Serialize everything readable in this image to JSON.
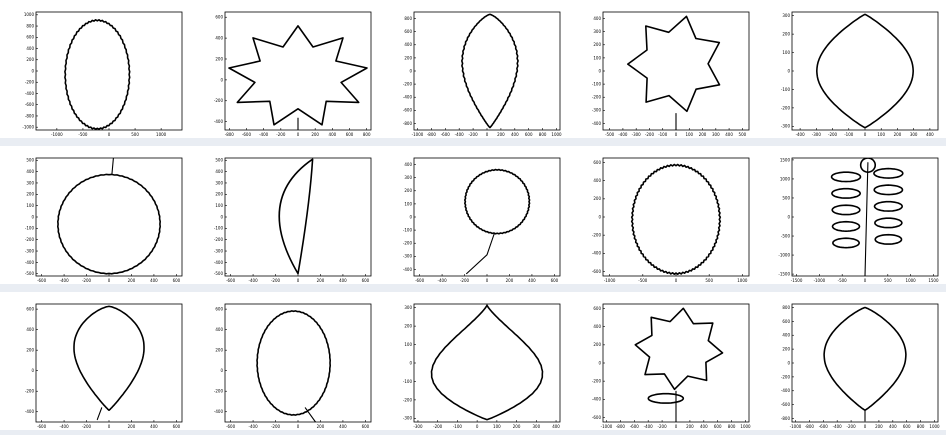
{
  "chart_data": [
    {
      "type": "line",
      "shape": "ellipse-toothed",
      "xticks": [
        "-1000",
        "-500",
        "0",
        "500",
        "1000"
      ],
      "yticks": [
        "1000",
        "800",
        "600",
        "400",
        "200",
        "0",
        "-200",
        "-400",
        "-600",
        "-800",
        "-1000"
      ],
      "xlim": [
        -1400,
        1400
      ],
      "ylim": [
        -1050,
        1050
      ],
      "grid": false,
      "legend": "none"
    },
    {
      "type": "line",
      "shape": "maple",
      "xticks": [
        "-800",
        "-600",
        "-400",
        "-200",
        "0",
        "200",
        "400",
        "600",
        "800"
      ],
      "yticks": [
        "600",
        "400",
        "200",
        "0",
        "-200",
        "-400"
      ],
      "xlim": [
        -850,
        850
      ],
      "ylim": [
        -480,
        650
      ],
      "grid": false,
      "legend": "none"
    },
    {
      "type": "line",
      "shape": "ovate-toothed",
      "xticks": [
        "-1000",
        "-800",
        "-600",
        "-400",
        "-200",
        "0",
        "200",
        "400",
        "600",
        "800",
        "1000"
      ],
      "yticks": [
        "800",
        "600",
        "400",
        "200",
        "0",
        "-200",
        "-400",
        "-600",
        "-800"
      ],
      "xlim": [
        -1050,
        1050
      ],
      "ylim": [
        -900,
        900
      ],
      "grid": false,
      "legend": "none"
    },
    {
      "type": "line",
      "shape": "oak",
      "xticks": [
        "-500",
        "-400",
        "-300",
        "-200",
        "-100",
        "0",
        "100",
        "200",
        "300",
        "400",
        "500"
      ],
      "yticks": [
        "400",
        "300",
        "200",
        "100",
        "0",
        "-100",
        "-200",
        "-300",
        "-400"
      ],
      "xlim": [
        -550,
        550
      ],
      "ylim": [
        -450,
        450
      ],
      "grid": false,
      "legend": "none"
    },
    {
      "type": "line",
      "shape": "rhombic",
      "xticks": [
        "-400",
        "-300",
        "-200",
        "-100",
        "0",
        "100",
        "200",
        "300",
        "400"
      ],
      "yticks": [
        "300",
        "200",
        "100",
        "0",
        "-100",
        "-200",
        "-300"
      ],
      "xlim": [
        -450,
        450
      ],
      "ylim": [
        -320,
        320
      ],
      "grid": false,
      "legend": "none"
    },
    {
      "type": "line",
      "shape": "round",
      "xticks": [
        "-600",
        "-400",
        "-200",
        "0",
        "200",
        "400",
        "600"
      ],
      "yticks": [
        "500",
        "400",
        "300",
        "200",
        "100",
        "0",
        "-100",
        "-200",
        "-300",
        "-400",
        "-500"
      ],
      "xlim": [
        -650,
        650
      ],
      "ylim": [
        -520,
        520
      ],
      "grid": false,
      "legend": "none"
    },
    {
      "type": "line",
      "shape": "narrow-curved",
      "xticks": [
        "-600",
        "-400",
        "-200",
        "0",
        "200",
        "400",
        "600"
      ],
      "yticks": [
        "500",
        "400",
        "300",
        "200",
        "100",
        "0",
        "-100",
        "-200",
        "-300",
        "-400",
        "-500"
      ],
      "xlim": [
        -650,
        650
      ],
      "ylim": [
        -520,
        520
      ],
      "grid": false,
      "legend": "none"
    },
    {
      "type": "line",
      "shape": "aspen",
      "xticks": [
        "-600",
        "-400",
        "-200",
        "0",
        "200",
        "400",
        "600"
      ],
      "yticks": [
        "400",
        "300",
        "200",
        "100",
        "0",
        "-100",
        "-200",
        "-300",
        "-400"
      ],
      "xlim": [
        -650,
        650
      ],
      "ylim": [
        -450,
        450
      ],
      "grid": false,
      "legend": "none"
    },
    {
      "type": "line",
      "shape": "obovate-serrated",
      "xticks": [
        "-1000",
        "-500",
        "0",
        "500",
        "1000"
      ],
      "yticks": [
        "600",
        "400",
        "200",
        "0",
        "-200",
        "-400",
        "-600"
      ],
      "xlim": [
        -1100,
        1100
      ],
      "ylim": [
        -650,
        650
      ],
      "grid": false,
      "legend": "none"
    },
    {
      "type": "line",
      "shape": "compound-rowan",
      "xticks": [
        "-1500",
        "-1000",
        "-500",
        "0",
        "500",
        "1000",
        "1500"
      ],
      "yticks": [
        "1500",
        "1000",
        "500",
        "0",
        "-500",
        "-1000",
        "-1500"
      ],
      "xlim": [
        -1600,
        1600
      ],
      "ylim": [
        -1550,
        1550
      ],
      "grid": false,
      "legend": "none"
    },
    {
      "type": "line",
      "shape": "ovate-stem",
      "xticks": [
        "-600",
        "-400",
        "-200",
        "0",
        "200",
        "400",
        "600"
      ],
      "yticks": [
        "600",
        "400",
        "200",
        "0",
        "-200",
        "-400"
      ],
      "xlim": [
        -650,
        650
      ],
      "ylim": [
        -500,
        650
      ],
      "grid": false,
      "legend": "none"
    },
    {
      "type": "line",
      "shape": "cordate-stem",
      "xticks": [
        "-600",
        "-400",
        "-200",
        "0",
        "200",
        "400",
        "600"
      ],
      "yticks": [
        "600",
        "400",
        "200",
        "0",
        "-200",
        "-400"
      ],
      "xlim": [
        -650,
        650
      ],
      "ylim": [
        -500,
        650
      ],
      "grid": false,
      "legend": "none"
    },
    {
      "type": "line",
      "shape": "deltoid",
      "xticks": [
        "-300",
        "-200",
        "-100",
        "0",
        "100",
        "200",
        "300",
        "400"
      ],
      "yticks": [
        "300",
        "200",
        "100",
        "0",
        "-100",
        "-200",
        "-300"
      ],
      "xlim": [
        -320,
        420
      ],
      "ylim": [
        -320,
        320
      ],
      "grid": false,
      "legend": "none"
    },
    {
      "type": "line",
      "shape": "hawthorn",
      "xticks": [
        "-1000",
        "-800",
        "-600",
        "-400",
        "-200",
        "0",
        "200",
        "400",
        "600",
        "800",
        "1000"
      ],
      "yticks": [
        "600",
        "400",
        "200",
        "0",
        "-200",
        "-400",
        "-600"
      ],
      "xlim": [
        -1050,
        1050
      ],
      "ylim": [
        -650,
        650
      ],
      "grid": false,
      "legend": "none"
    },
    {
      "type": "line",
      "shape": "lanceolate-stem",
      "xticks": [
        "-1000",
        "-800",
        "-600",
        "-400",
        "-200",
        "0",
        "200",
        "400",
        "600",
        "800",
        "1000"
      ],
      "yticks": [
        "800",
        "600",
        "400",
        "200",
        "0",
        "-200",
        "-400",
        "-600",
        "-800"
      ],
      "xlim": [
        -1050,
        1050
      ],
      "ylim": [
        -850,
        850
      ],
      "grid": false,
      "legend": "none"
    }
  ]
}
